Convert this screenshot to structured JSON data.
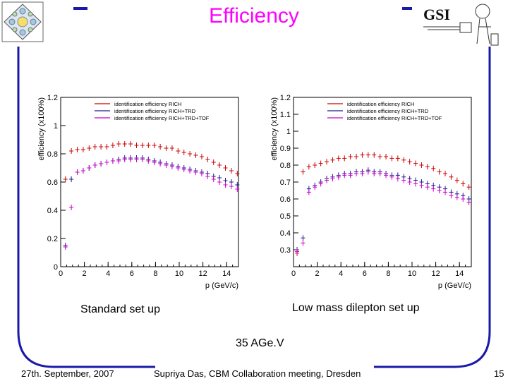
{
  "slide": {
    "title": "Efficiency",
    "caption_left": "Standard set up",
    "caption_right": "Low mass dilepton set up",
    "energy": "35 AGe.V",
    "footer_date": "27th. September, 2007",
    "footer_center": "Supriya Das, CBM Collaboration meeting, Dresden",
    "page_number": "15",
    "logo_text": "GSI",
    "colors": {
      "title": "#ff00ff",
      "frame": "#1a1aa8",
      "rich": "#cc0000",
      "richtrd": "#1a1a8c",
      "richtrdtof": "#cc00cc"
    }
  },
  "chart_data": [
    {
      "type": "scatter",
      "title": "",
      "xlabel": "p (GeV/c)",
      "ylabel": "efficiency (x100%)",
      "xlim": [
        0,
        15
      ],
      "ylim": [
        0,
        1.2
      ],
      "xticks": [
        0,
        2,
        4,
        6,
        8,
        10,
        12,
        14
      ],
      "yticks": [
        0,
        0.2,
        0.4,
        0.6,
        0.8,
        1,
        1.2
      ],
      "legend_position": "top-right",
      "series": [
        {
          "name": "identification efficiency RICH",
          "color": "#cc0000",
          "points": [
            [
              0.4,
              0.62
            ],
            [
              0.9,
              0.82
            ],
            [
              1.4,
              0.83
            ],
            [
              1.9,
              0.83
            ],
            [
              2.4,
              0.84
            ],
            [
              2.9,
              0.85
            ],
            [
              3.4,
              0.85
            ],
            [
              3.9,
              0.85
            ],
            [
              4.4,
              0.86
            ],
            [
              4.9,
              0.87
            ],
            [
              5.4,
              0.87
            ],
            [
              5.9,
              0.87
            ],
            [
              6.4,
              0.86
            ],
            [
              6.9,
              0.86
            ],
            [
              7.4,
              0.86
            ],
            [
              7.9,
              0.86
            ],
            [
              8.4,
              0.85
            ],
            [
              8.9,
              0.84
            ],
            [
              9.4,
              0.84
            ],
            [
              9.9,
              0.82
            ],
            [
              10.4,
              0.81
            ],
            [
              10.9,
              0.8
            ],
            [
              11.4,
              0.79
            ],
            [
              11.9,
              0.78
            ],
            [
              12.4,
              0.76
            ],
            [
              12.9,
              0.74
            ],
            [
              13.4,
              0.72
            ],
            [
              13.9,
              0.7
            ],
            [
              14.4,
              0.68
            ],
            [
              14.9,
              0.66
            ]
          ]
        },
        {
          "name": "identification efficiency RICH+TRD",
          "color": "#1a1a8c",
          "points": [
            [
              0.4,
              0.15
            ],
            [
              0.9,
              0.62
            ],
            [
              1.4,
              0.67
            ],
            [
              1.9,
              0.68
            ],
            [
              2.4,
              0.7
            ],
            [
              2.9,
              0.72
            ],
            [
              3.4,
              0.73
            ],
            [
              3.9,
              0.74
            ],
            [
              4.4,
              0.75
            ],
            [
              4.9,
              0.76
            ],
            [
              5.4,
              0.77
            ],
            [
              5.9,
              0.77
            ],
            [
              6.4,
              0.77
            ],
            [
              6.9,
              0.77
            ],
            [
              7.4,
              0.76
            ],
            [
              7.9,
              0.75
            ],
            [
              8.4,
              0.74
            ],
            [
              8.9,
              0.73
            ],
            [
              9.4,
              0.72
            ],
            [
              9.9,
              0.71
            ],
            [
              10.4,
              0.7
            ],
            [
              10.9,
              0.69
            ],
            [
              11.4,
              0.68
            ],
            [
              11.9,
              0.67
            ],
            [
              12.4,
              0.66
            ],
            [
              12.9,
              0.64
            ],
            [
              13.4,
              0.63
            ],
            [
              13.9,
              0.61
            ],
            [
              14.4,
              0.6
            ],
            [
              14.9,
              0.58
            ]
          ]
        },
        {
          "name": "identification efficiency RICH+TRD+TOF",
          "color": "#cc00cc",
          "points": [
            [
              0.4,
              0.14
            ],
            [
              0.9,
              0.42
            ],
            [
              1.4,
              0.67
            ],
            [
              1.9,
              0.68
            ],
            [
              2.4,
              0.7
            ],
            [
              2.9,
              0.72
            ],
            [
              3.4,
              0.73
            ],
            [
              3.9,
              0.74
            ],
            [
              4.4,
              0.75
            ],
            [
              4.9,
              0.75
            ],
            [
              5.4,
              0.76
            ],
            [
              5.9,
              0.76
            ],
            [
              6.4,
              0.76
            ],
            [
              6.9,
              0.76
            ],
            [
              7.4,
              0.75
            ],
            [
              7.9,
              0.74
            ],
            [
              8.4,
              0.73
            ],
            [
              8.9,
              0.72
            ],
            [
              9.4,
              0.71
            ],
            [
              9.9,
              0.7
            ],
            [
              10.4,
              0.69
            ],
            [
              10.9,
              0.68
            ],
            [
              11.4,
              0.67
            ],
            [
              11.9,
              0.66
            ],
            [
              12.4,
              0.64
            ],
            [
              12.9,
              0.62
            ],
            [
              13.4,
              0.6
            ],
            [
              13.9,
              0.58
            ],
            [
              14.4,
              0.57
            ],
            [
              14.9,
              0.55
            ]
          ]
        }
      ]
    },
    {
      "type": "scatter",
      "title": "",
      "xlabel": "p (GeV/c)",
      "ylabel": "efficiency (x100%)",
      "xlim": [
        0,
        15
      ],
      "ylim": [
        0.2,
        1.2
      ],
      "xticks": [
        0,
        2,
        4,
        6,
        8,
        10,
        12,
        14
      ],
      "yticks": [
        0.3,
        0.4,
        0.5,
        0.6,
        0.7,
        0.8,
        0.9,
        1,
        1.1,
        1.2
      ],
      "legend_position": "top-right",
      "series": [
        {
          "name": "identification efficiency RICH",
          "color": "#cc0000",
          "points": [
            [
              0.3,
              0.28
            ],
            [
              0.8,
              0.76
            ],
            [
              1.3,
              0.79
            ],
            [
              1.8,
              0.8
            ],
            [
              2.3,
              0.81
            ],
            [
              2.8,
              0.82
            ],
            [
              3.3,
              0.83
            ],
            [
              3.8,
              0.84
            ],
            [
              4.3,
              0.84
            ],
            [
              4.8,
              0.85
            ],
            [
              5.3,
              0.85
            ],
            [
              5.8,
              0.86
            ],
            [
              6.3,
              0.86
            ],
            [
              6.8,
              0.86
            ],
            [
              7.3,
              0.85
            ],
            [
              7.8,
              0.85
            ],
            [
              8.3,
              0.84
            ],
            [
              8.8,
              0.84
            ],
            [
              9.3,
              0.83
            ],
            [
              9.8,
              0.82
            ],
            [
              10.3,
              0.81
            ],
            [
              10.8,
              0.8
            ],
            [
              11.3,
              0.79
            ],
            [
              11.8,
              0.78
            ],
            [
              12.3,
              0.76
            ],
            [
              12.8,
              0.75
            ],
            [
              13.3,
              0.73
            ],
            [
              13.8,
              0.71
            ],
            [
              14.3,
              0.69
            ],
            [
              14.8,
              0.67
            ]
          ]
        },
        {
          "name": "identification efficiency RICH+TRD",
          "color": "#1a1a8c",
          "points": [
            [
              0.3,
              0.3
            ],
            [
              0.8,
              0.37
            ],
            [
              1.3,
              0.66
            ],
            [
              1.8,
              0.68
            ],
            [
              2.3,
              0.7
            ],
            [
              2.8,
              0.72
            ],
            [
              3.3,
              0.73
            ],
            [
              3.8,
              0.74
            ],
            [
              4.3,
              0.75
            ],
            [
              4.8,
              0.75
            ],
            [
              5.3,
              0.76
            ],
            [
              5.8,
              0.76
            ],
            [
              6.3,
              0.77
            ],
            [
              6.8,
              0.76
            ],
            [
              7.3,
              0.76
            ],
            [
              7.8,
              0.75
            ],
            [
              8.3,
              0.74
            ],
            [
              8.8,
              0.74
            ],
            [
              9.3,
              0.73
            ],
            [
              9.8,
              0.72
            ],
            [
              10.3,
              0.71
            ],
            [
              10.8,
              0.7
            ],
            [
              11.3,
              0.69
            ],
            [
              11.8,
              0.68
            ],
            [
              12.3,
              0.67
            ],
            [
              12.8,
              0.66
            ],
            [
              13.3,
              0.64
            ],
            [
              13.8,
              0.63
            ],
            [
              14.3,
              0.62
            ],
            [
              14.8,
              0.6
            ]
          ]
        },
        {
          "name": "identification efficiency RICH+TRD+TOF",
          "color": "#cc00cc",
          "points": [
            [
              0.3,
              0.29
            ],
            [
              0.8,
              0.34
            ],
            [
              1.3,
              0.64
            ],
            [
              1.8,
              0.67
            ],
            [
              2.3,
              0.69
            ],
            [
              2.8,
              0.71
            ],
            [
              3.3,
              0.72
            ],
            [
              3.8,
              0.73
            ],
            [
              4.3,
              0.74
            ],
            [
              4.8,
              0.74
            ],
            [
              5.3,
              0.75
            ],
            [
              5.8,
              0.75
            ],
            [
              6.3,
              0.76
            ],
            [
              6.8,
              0.75
            ],
            [
              7.3,
              0.75
            ],
            [
              7.8,
              0.74
            ],
            [
              8.3,
              0.73
            ],
            [
              8.8,
              0.72
            ],
            [
              9.3,
              0.71
            ],
            [
              9.8,
              0.7
            ],
            [
              10.3,
              0.69
            ],
            [
              10.8,
              0.68
            ],
            [
              11.3,
              0.67
            ],
            [
              11.8,
              0.66
            ],
            [
              12.3,
              0.65
            ],
            [
              12.8,
              0.64
            ],
            [
              13.3,
              0.62
            ],
            [
              13.8,
              0.61
            ],
            [
              14.3,
              0.6
            ],
            [
              14.8,
              0.58
            ]
          ]
        }
      ]
    }
  ]
}
